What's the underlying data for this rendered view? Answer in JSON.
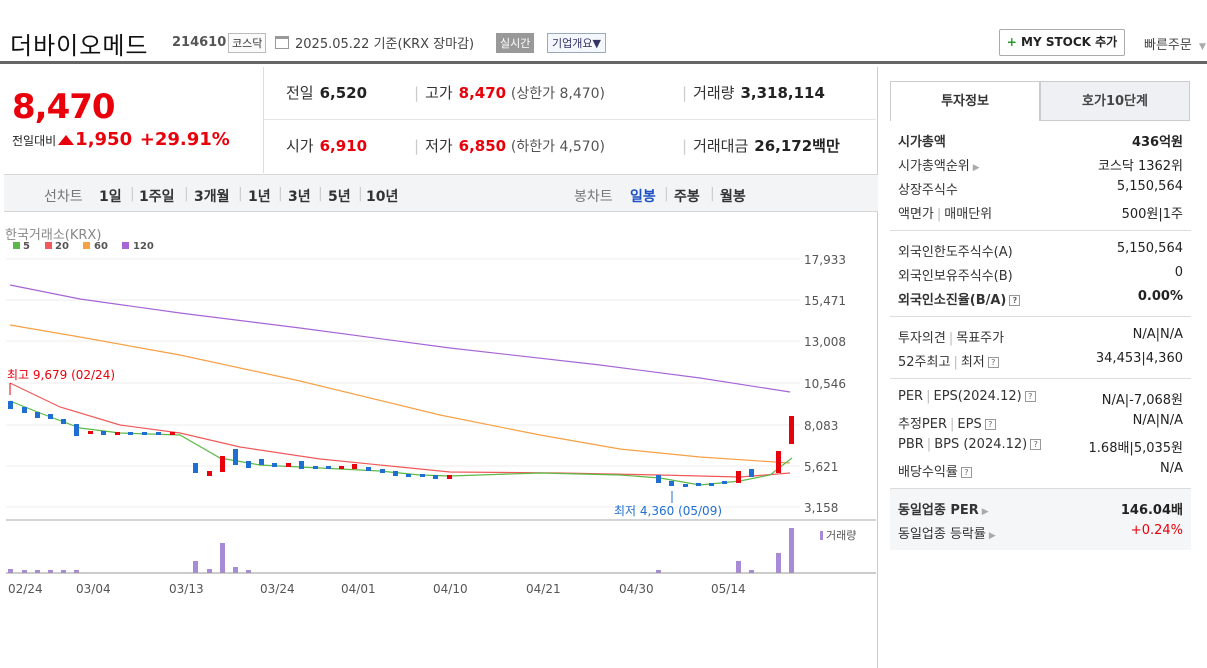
{
  "header": {
    "name": "더바이오메드",
    "code": "214610",
    "market": "코스닥",
    "date_info": "2025.05.22  기준(KRX 장마감)",
    "realtime": "실시간",
    "company": "기업개요▼",
    "mystock": "MY STOCK 추가",
    "mystock_plus": "+",
    "fast_order": "빠른주문"
  },
  "price": {
    "current": "8,470",
    "change_label": "전일대비",
    "change_value": "1,950",
    "change_pct": "+29.91%"
  },
  "stats": {
    "prev_label": "전일",
    "prev": "6,520",
    "high_label": "고가",
    "high": "8,470",
    "upper_limit": "(상한가 8,470)",
    "volume_label": "거래량",
    "volume": "3,318,114",
    "open_label": "시가",
    "open": "6,910",
    "low_label": "저가",
    "low": "6,850",
    "lower_limit": "(하한가 4,570)",
    "amount_label": "거래대금",
    "amount": "26,172",
    "amount_unit": "백만"
  },
  "period": {
    "line_label": "선차트",
    "line_items": [
      "1일",
      "1주일",
      "3개월",
      "1년",
      "3년",
      "5년",
      "10년"
    ],
    "candle_label": "봉차트",
    "candle_items": [
      "일봉",
      "주봉",
      "월봉"
    ],
    "selected": "일봉"
  },
  "chart": {
    "source": "한국거래소(KRX)",
    "legend": [
      {
        "label": "5",
        "color": "#5cb947"
      },
      {
        "label": "20",
        "color": "#f05a5a"
      },
      {
        "label": "60",
        "color": "#f7a045"
      },
      {
        "label": "120",
        "color": "#a666d6"
      }
    ],
    "y_ticks": [
      "17,933",
      "15,471",
      "13,008",
      "10,546",
      "8,083",
      "5,621",
      "3,158"
    ],
    "x_ticks": [
      "02/24",
      "03/04",
      "03/13",
      "03/24",
      "04/01",
      "04/10",
      "04/21",
      "04/30",
      "05/14"
    ],
    "high_note": "최고 9,679 (02/24)",
    "low_note": "최저 4,360 (05/09)",
    "volume_label": "거래량"
  },
  "chart_data": {
    "type": "candlestick",
    "y_axis_ticks": [
      3158,
      5621,
      8083,
      10546,
      13008,
      15471,
      17933
    ],
    "high": {
      "value": 9679,
      "date": "02/24"
    },
    "low": {
      "value": 4360,
      "date": "05/09"
    },
    "last_close": 8470,
    "moving_averages": [
      "5",
      "20",
      "60",
      "120"
    ]
  },
  "side": {
    "tab1": "투자정보",
    "tab2": "호가10단계",
    "s1": [
      {
        "k": "시가총액",
        "v": "436억원",
        "bold": true
      },
      {
        "k": "시가총액순위",
        "v": "코스닥 1362위",
        "arrow": true
      },
      {
        "k": "상장주식수",
        "v": "5,150,564"
      },
      {
        "k": "액면가",
        "k2": "매매단위",
        "v": "500원",
        "v2": "1주"
      }
    ],
    "s2": [
      {
        "k": "외국인한도주식수(A)",
        "v": "5,150,564"
      },
      {
        "k": "외국인보유주식수(B)",
        "v": "0"
      },
      {
        "k": "외국인소진율(B/A)",
        "v": "0.00%",
        "bold": true,
        "q": true
      }
    ],
    "s3": [
      {
        "k": "투자의견",
        "k2": "목표주가",
        "v": "N/A",
        "v2": "N/A"
      },
      {
        "k": "52주최고",
        "k2": "최저",
        "v": "34,453",
        "v2": "4,360",
        "q": true
      }
    ],
    "s4": [
      {
        "k": "PER",
        "k2": "EPS(2024.12)",
        "v": "N/A",
        "v2": "-7,068원",
        "q": true
      },
      {
        "k": "추정PER",
        "k2": "EPS",
        "v": "N/A",
        "v2": "N/A",
        "q": true
      },
      {
        "k": "PBR",
        "k2": "BPS (2024.12)",
        "v": "1.68배",
        "v2": "5,035원",
        "q": true
      },
      {
        "k": "배당수익률",
        "v": "N/A",
        "q": true
      }
    ],
    "s5": [
      {
        "k": "동일업종 PER",
        "v": "146.04배",
        "bold": true,
        "arrow": true
      },
      {
        "k": "동일업종 등락률",
        "v": "+0.24%",
        "arrow": true,
        "red": true
      }
    ]
  }
}
